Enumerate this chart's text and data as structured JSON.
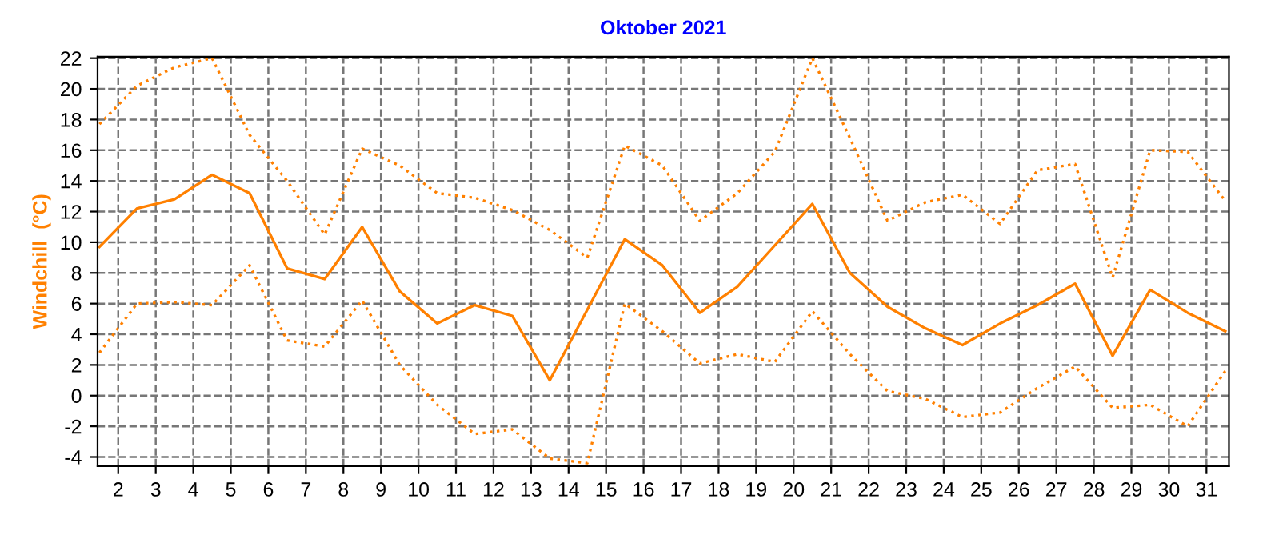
{
  "chart_data": {
    "type": "line",
    "title": "Oktober 2021",
    "ylabel": "Windchill  (°C)",
    "x": [
      1.5,
      2.5,
      3.5,
      4.5,
      5.5,
      6.5,
      7.5,
      8.5,
      9.5,
      10.5,
      11.5,
      12.5,
      13.5,
      14.5,
      15.5,
      16.5,
      17.5,
      18.5,
      19.5,
      20.5,
      21.5,
      22.5,
      23.5,
      24.5,
      25.5,
      26.5,
      27.5,
      28.5,
      29.5,
      30.5,
      31.5
    ],
    "series": [
      {
        "color": "#ff8000",
        "line_style": "dotted",
        "values": [
          17.7,
          20.2,
          21.4,
          22.0,
          17.0,
          14.0,
          10.5,
          16.1,
          15.0,
          13.2,
          12.9,
          12.1,
          10.8,
          9.0,
          16.3,
          15.0,
          11.4,
          13.2,
          15.9,
          22.0,
          16.8,
          11.4,
          12.6,
          13.1,
          11.2,
          14.7,
          15.1,
          7.7,
          16.0,
          15.9,
          12.7
        ]
      },
      {
        "color": "#ff8000",
        "line_style": "solid",
        "values": [
          9.7,
          12.2,
          12.8,
          14.4,
          13.2,
          8.3,
          7.6,
          11.0,
          6.8,
          4.7,
          5.9,
          5.2,
          1.0,
          5.6,
          10.2,
          8.5,
          5.4,
          7.1,
          9.8,
          12.5,
          8.0,
          5.8,
          4.4,
          3.3,
          4.7,
          5.9,
          7.3,
          2.6,
          6.9,
          5.4,
          4.2
        ]
      },
      {
        "color": "#ff8000",
        "line_style": "dotted",
        "values": [
          2.8,
          6.0,
          6.1,
          5.9,
          8.5,
          3.6,
          3.2,
          6.2,
          2.0,
          -0.6,
          -2.5,
          -2.2,
          -4.1,
          -4.4,
          6.0,
          4.2,
          2.1,
          2.7,
          2.2,
          5.5,
          2.7,
          0.3,
          -0.2,
          -1.4,
          -1.1,
          0.5,
          1.9,
          -0.8,
          -0.6,
          -2.0,
          1.6
        ]
      }
    ],
    "xlim": [
      1.45,
      31.6
    ],
    "xticks": [
      2,
      3,
      4,
      5,
      6,
      7,
      8,
      9,
      10,
      11,
      12,
      13,
      14,
      15,
      16,
      17,
      18,
      19,
      20,
      21,
      22,
      23,
      24,
      25,
      26,
      27,
      28,
      29,
      30,
      31
    ],
    "ylim": [
      -4.6,
      22.1
    ],
    "yticks": [
      -4,
      -2,
      0,
      2,
      4,
      6,
      8,
      10,
      12,
      14,
      16,
      18,
      20,
      22
    ],
    "grid": true,
    "marker": "none",
    "legend": false
  }
}
